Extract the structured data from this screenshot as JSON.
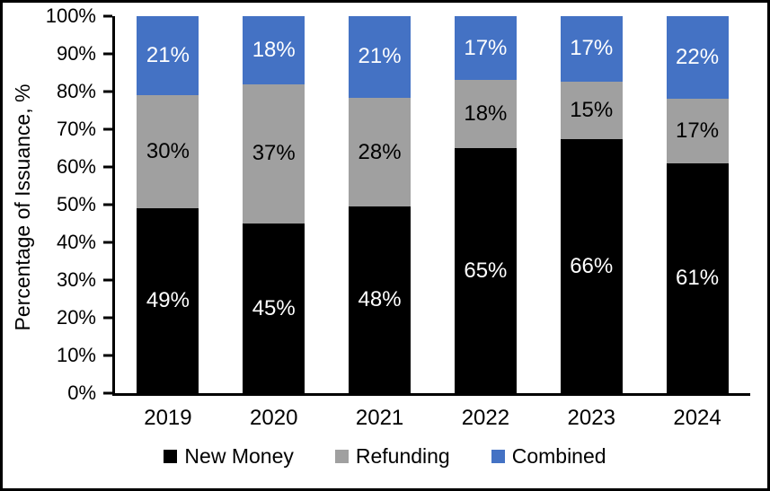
{
  "figure": {
    "background": "#ffffff",
    "border_color": "#000000"
  },
  "chart_data": {
    "type": "bar",
    "subtype": "stacked-100",
    "title": "",
    "xlabel": "",
    "ylabel": "Percentage of Issuance, %",
    "categories": [
      "2019",
      "2020",
      "2021",
      "2022",
      "2023",
      "2024"
    ],
    "series": [
      {
        "name": "New Money",
        "color": "#000000",
        "label_color": "#ffffff",
        "values": [
          49,
          45,
          48,
          65,
          66,
          61
        ]
      },
      {
        "name": "Refunding",
        "color": "#a0a0a0",
        "label_color": "#000000",
        "values": [
          30,
          37,
          28,
          18,
          15,
          17
        ]
      },
      {
        "name": "Combined",
        "color": "#4472c4",
        "label_color": "#ffffff",
        "values": [
          21,
          18,
          21,
          17,
          17,
          22
        ]
      }
    ],
    "value_suffix": "%",
    "ylim": [
      0,
      100
    ],
    "yticks": [
      "0%",
      "10%",
      "20%",
      "30%",
      "40%",
      "50%",
      "60%",
      "70%",
      "80%",
      "90%",
      "100%"
    ],
    "grid": false,
    "legend_position": "bottom"
  }
}
